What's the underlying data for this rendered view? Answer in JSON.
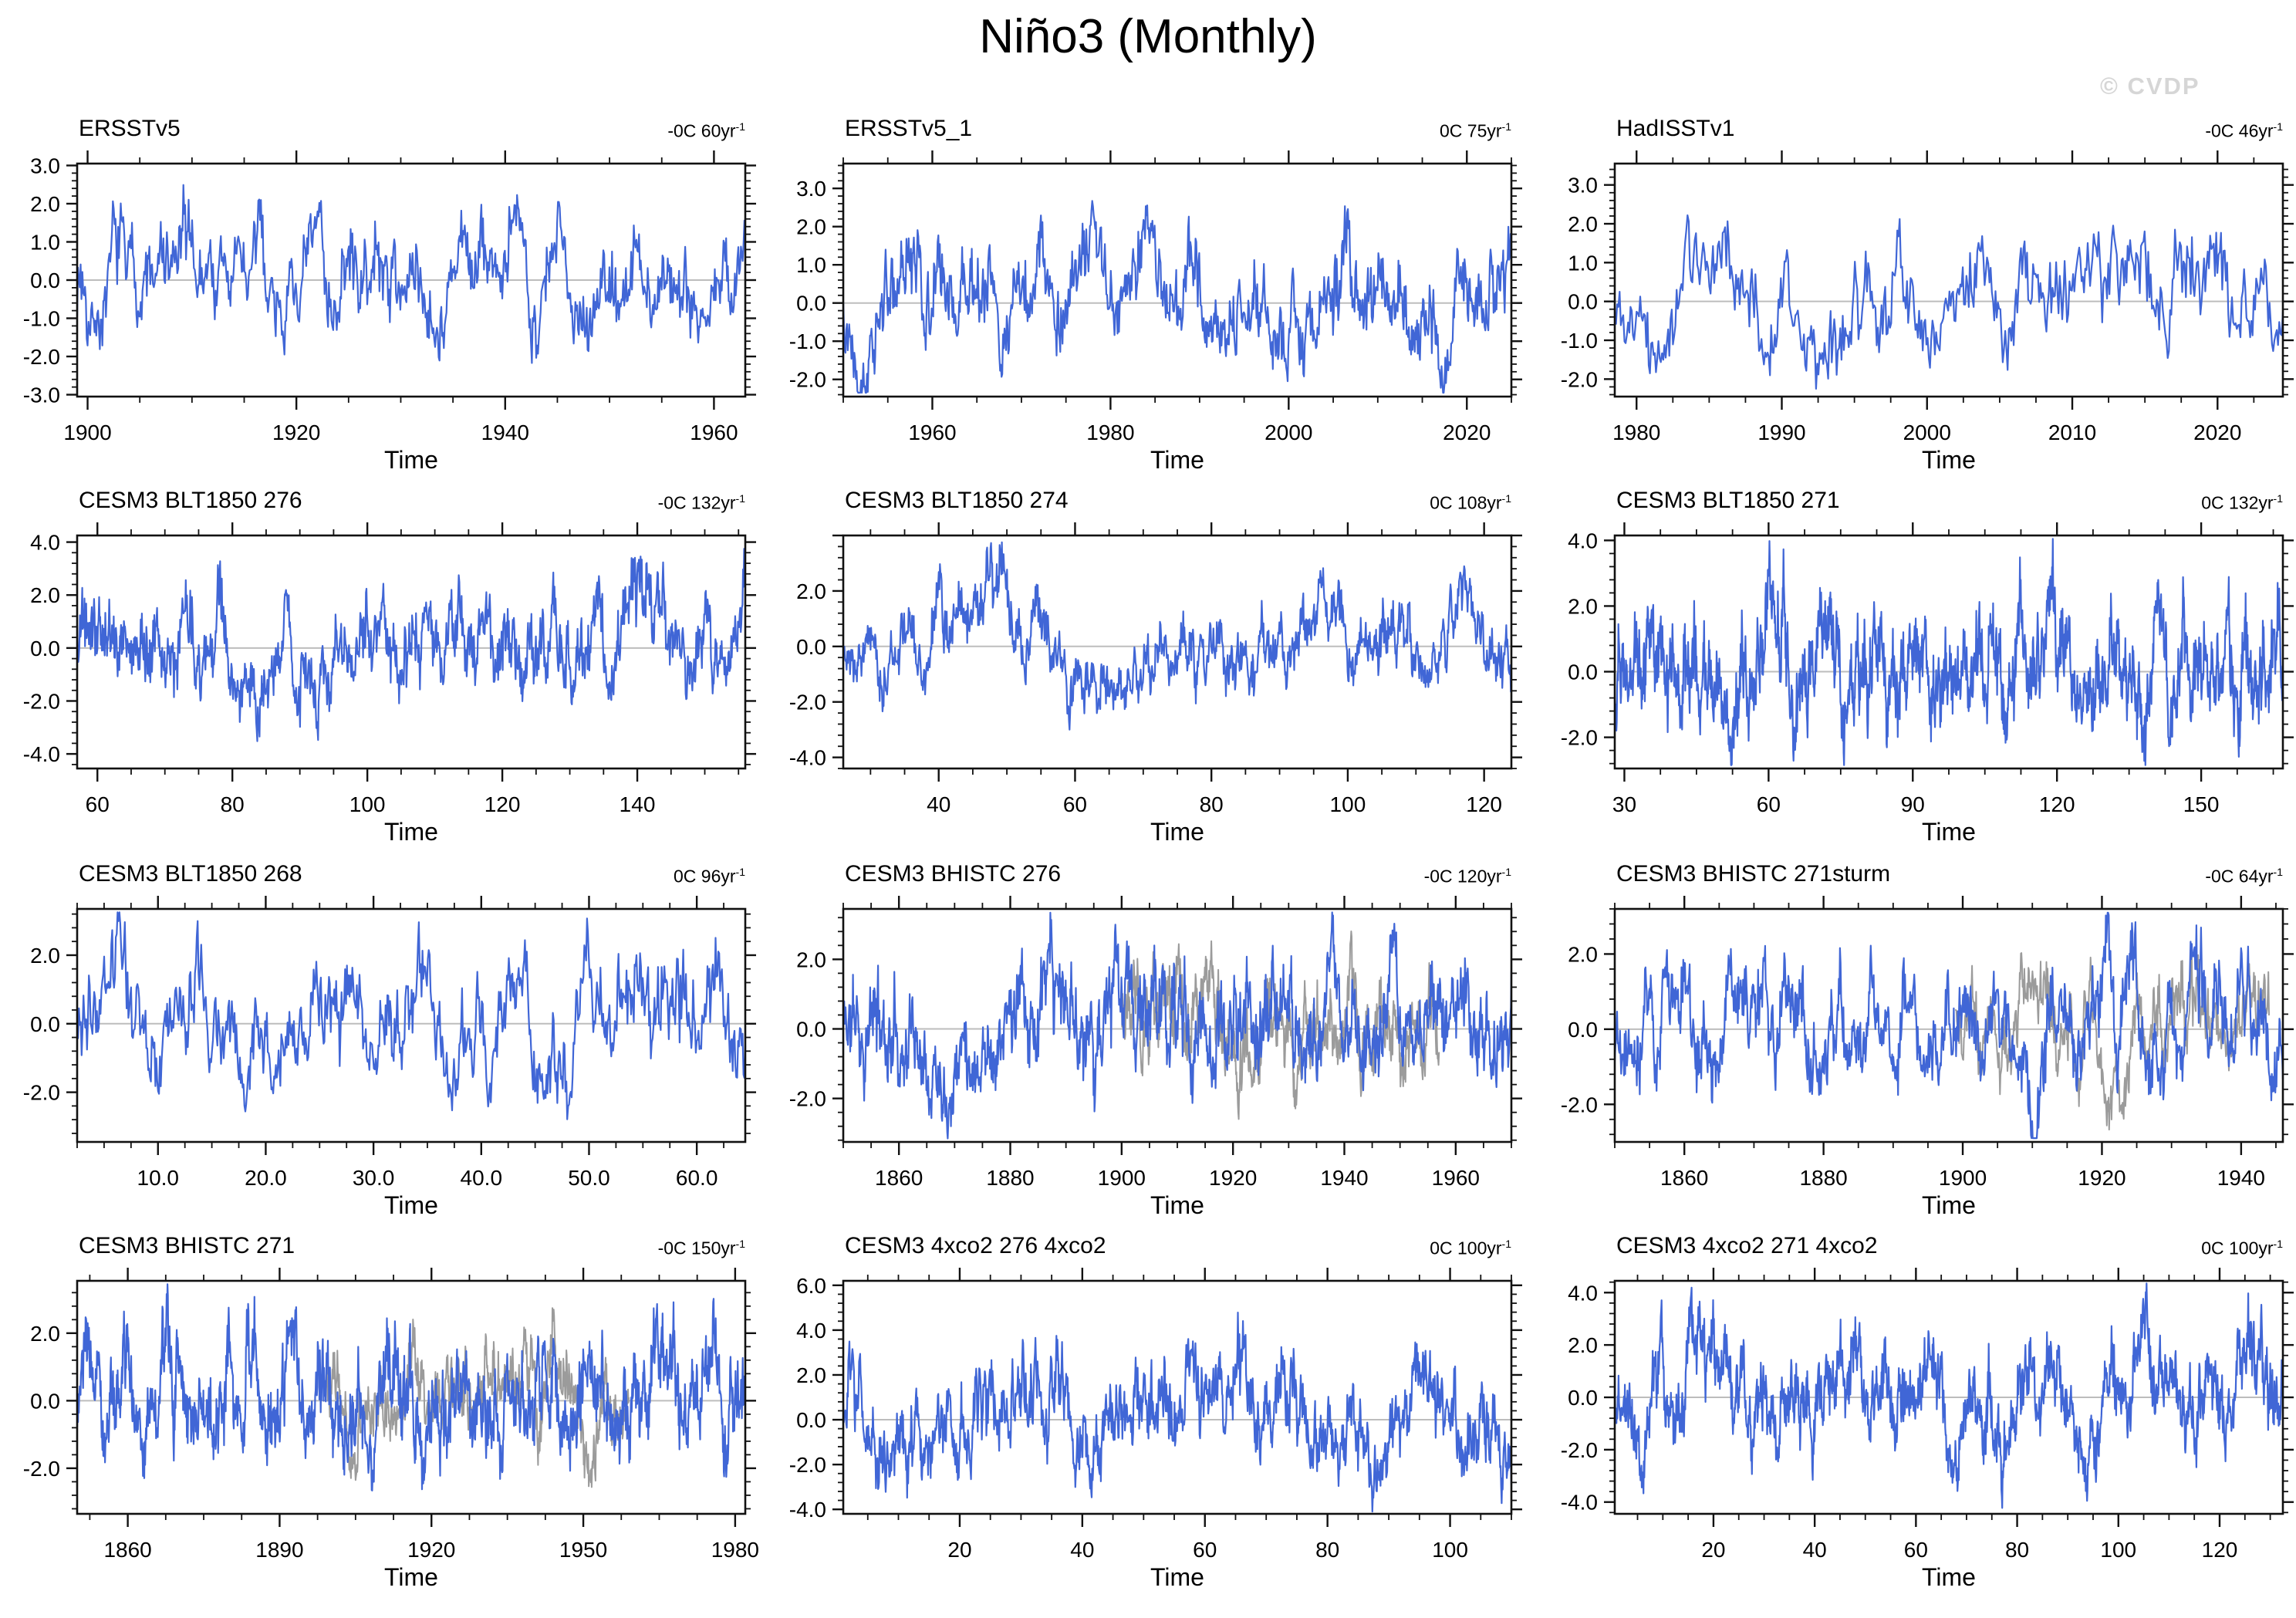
{
  "page_title": "Niño3 (Monthly)",
  "watermark": "© CVDP",
  "labels": {
    "time": "Time"
  },
  "colors": {
    "series_blue": "#4066D6",
    "series_gray": "#9B9B9B",
    "zero_line": "#BDBDBD",
    "axis": "#111111",
    "watermark_gray": "#D6D6D6",
    "background": "#FFFFFF"
  },
  "chart_data": [
    {
      "type": "line",
      "title": "ERSSTv5",
      "trend_prefix": "-0C 60yr",
      "trend_sup": "-1",
      "xlabel": "Time",
      "x_range": [
        1899,
        1963
      ],
      "y_range": [
        -3.05,
        3.05
      ],
      "x_tick_values": [
        1900,
        1920,
        1940,
        1960
      ],
      "x_tick_labels": [
        "1900",
        "1920",
        "1940",
        "1960"
      ],
      "y_tick_values": [
        3,
        2,
        1,
        0,
        -1,
        -2,
        -3
      ],
      "y_tick_labels": [
        "3.0",
        "2.0",
        "1.0",
        "0.0",
        "-1.0",
        "-2.0",
        "-3.0"
      ],
      "series": [
        {
          "name": "Niño3 index",
          "color_key": "series_blue",
          "seed": 7,
          "sigma": 0.85,
          "x_start": 1899,
          "x_end": 1963
        }
      ]
    },
    {
      "type": "line",
      "title": "ERSSTv5_1",
      "trend_prefix": "0C 75yr",
      "trend_sup": "-1",
      "xlabel": "Time",
      "x_range": [
        1950,
        2025
      ],
      "y_range": [
        -2.45,
        3.65
      ],
      "x_tick_values": [
        1960,
        1980,
        2000,
        2020
      ],
      "x_tick_labels": [
        "1960",
        "1980",
        "2000",
        "2020"
      ],
      "y_tick_values": [
        3,
        2,
        1,
        0,
        -1,
        -2
      ],
      "y_tick_labels": [
        "3.0",
        "2.0",
        "1.0",
        "0.0",
        "-1.0",
        "-2.0"
      ],
      "series": [
        {
          "name": "Niño3 index",
          "color_key": "series_blue",
          "seed": 13,
          "sigma": 0.95,
          "x_start": 1950,
          "x_end": 2025
        }
      ]
    },
    {
      "type": "line",
      "title": "HadISSTv1",
      "trend_prefix": "-0C 46yr",
      "trend_sup": "-1",
      "xlabel": "Time",
      "x_range": [
        1978.5,
        2024.5
      ],
      "y_range": [
        -2.45,
        3.55
      ],
      "x_tick_values": [
        1980,
        1990,
        2000,
        2010,
        2020
      ],
      "x_tick_labels": [
        "1980",
        "1990",
        "2000",
        "2010",
        "2020"
      ],
      "y_tick_values": [
        3,
        2,
        1,
        0,
        -1,
        -2
      ],
      "y_tick_labels": [
        "3.0",
        "2.0",
        "1.0",
        "0.0",
        "-1.0",
        "-2.0"
      ],
      "series": [
        {
          "name": "Niño3 index",
          "color_key": "series_blue",
          "seed": 21,
          "sigma": 0.9,
          "x_start": 1978.5,
          "x_end": 2024.5
        }
      ]
    },
    {
      "type": "line",
      "title": "CESM3 BLT1850 276",
      "trend_prefix": "-0C 132yr",
      "trend_sup": "-1",
      "xlabel": "Time",
      "x_range": [
        57,
        156
      ],
      "y_range": [
        -4.55,
        4.25
      ],
      "x_tick_values": [
        60,
        80,
        100,
        120,
        140
      ],
      "x_tick_labels": [
        "60",
        "80",
        "100",
        "120",
        "140"
      ],
      "y_tick_values": [
        4,
        2,
        0,
        -2,
        -4
      ],
      "y_tick_labels": [
        "4.0",
        "2.0",
        "0.0",
        "-2.0",
        "-4.0"
      ],
      "series": [
        {
          "name": "Niño3 index",
          "color_key": "series_blue",
          "seed": 5,
          "sigma": 1.15,
          "x_start": 57,
          "x_end": 156
        }
      ]
    },
    {
      "type": "line",
      "title": "CESM3 BLT1850 274",
      "trend_prefix": "0C 108yr",
      "trend_sup": "-1",
      "xlabel": "Time",
      "x_range": [
        26,
        124
      ],
      "y_range": [
        -4.4,
        4.0
      ],
      "x_tick_values": [
        40,
        60,
        80,
        100,
        120
      ],
      "x_tick_labels": [
        "40",
        "60",
        "80",
        "100",
        "120"
      ],
      "y_tick_values": [
        2,
        0,
        -2,
        -4
      ],
      "y_tick_labels": [
        "2.0",
        "0.0",
        "-2.0",
        "-4.0"
      ],
      "series": [
        {
          "name": "Niño3 index",
          "color_key": "series_blue",
          "seed": 17,
          "sigma": 1.1,
          "x_start": 26,
          "x_end": 124
        }
      ]
    },
    {
      "type": "line",
      "title": "CESM3 BLT1850 271",
      "trend_prefix": "0C 132yr",
      "trend_sup": "-1",
      "xlabel": "Time",
      "x_range": [
        28,
        167
      ],
      "y_range": [
        -2.95,
        4.15
      ],
      "x_tick_values": [
        30,
        60,
        90,
        120,
        150
      ],
      "x_tick_labels": [
        "30",
        "60",
        "90",
        "120",
        "150"
      ],
      "y_tick_values": [
        4,
        2,
        0,
        -2
      ],
      "y_tick_labels": [
        "4.0",
        "2.0",
        "0.0",
        "-2.0"
      ],
      "series": [
        {
          "name": "Niño3 index",
          "color_key": "series_blue",
          "seed": 29,
          "sigma": 1.05,
          "x_start": 28,
          "x_end": 167
        }
      ]
    },
    {
      "type": "line",
      "title": "CESM3 BLT1850 268",
      "trend_prefix": "0C 96yr",
      "trend_sup": "-1",
      "xlabel": "Time",
      "x_range": [
        2.5,
        64.5
      ],
      "y_range": [
        -3.45,
        3.35
      ],
      "x_tick_values": [
        10,
        20,
        30,
        40,
        50,
        60
      ],
      "x_tick_labels": [
        "10.0",
        "20.0",
        "30.0",
        "40.0",
        "50.0",
        "60.0"
      ],
      "y_tick_values": [
        2,
        0,
        -2
      ],
      "y_tick_labels": [
        "2.0",
        "0.0",
        "-2.0"
      ],
      "series": [
        {
          "name": "Niño3 index",
          "color_key": "series_blue",
          "seed": 3,
          "sigma": 1.1,
          "x_start": 2.5,
          "x_end": 64.5
        }
      ]
    },
    {
      "type": "line",
      "title": "CESM3 BHISTC 276",
      "trend_prefix": "-0C 120yr",
      "trend_sup": "-1",
      "xlabel": "Time",
      "x_range": [
        1850,
        1970
      ],
      "y_range": [
        -3.25,
        3.45
      ],
      "x_tick_values": [
        1860,
        1880,
        1900,
        1920,
        1940,
        1960
      ],
      "x_tick_labels": [
        "1860",
        "1880",
        "1900",
        "1920",
        "1940",
        "1960"
      ],
      "y_tick_values": [
        2,
        0,
        -2
      ],
      "y_tick_labels": [
        "2.0",
        "0.0",
        "-2.0"
      ],
      "series": [
        {
          "name": "ensemble member (gray)",
          "color_key": "series_gray",
          "seed": 111,
          "sigma": 0.9,
          "x_start": 1900,
          "x_end": 1957
        },
        {
          "name": "Niño3 index",
          "color_key": "series_blue",
          "seed": 11,
          "sigma": 1.0,
          "x_start": 1850,
          "x_end": 1970
        }
      ]
    },
    {
      "type": "line",
      "title": "CESM3 BHISTC 271sturm",
      "trend_prefix": "-0C 64yr",
      "trend_sup": "-1",
      "xlabel": "Time",
      "x_range": [
        1850,
        1946
      ],
      "y_range": [
        -3.0,
        3.2
      ],
      "x_tick_values": [
        1860,
        1880,
        1900,
        1920,
        1940
      ],
      "x_tick_labels": [
        "1860",
        "1880",
        "1900",
        "1920",
        "1940"
      ],
      "y_tick_values": [
        2,
        0,
        -2
      ],
      "y_tick_labels": [
        "2.0",
        "0.0",
        "-2.0"
      ],
      "series": [
        {
          "name": "ensemble member (gray)",
          "color_key": "series_gray",
          "seed": 119,
          "sigma": 0.9,
          "x_start": 1899,
          "x_end": 1944
        },
        {
          "name": "Niño3 index",
          "color_key": "series_blue",
          "seed": 19,
          "sigma": 1.0,
          "x_start": 1850,
          "x_end": 1946
        }
      ]
    },
    {
      "type": "line",
      "title": "CESM3 BHISTC 271",
      "trend_prefix": "-0C 150yr",
      "trend_sup": "-1",
      "xlabel": "Time",
      "x_range": [
        1850,
        1982
      ],
      "y_range": [
        -3.35,
        3.55
      ],
      "x_tick_values": [
        1860,
        1890,
        1920,
        1950,
        1980
      ],
      "x_tick_labels": [
        "1860",
        "1890",
        "1920",
        "1950",
        "1980"
      ],
      "y_tick_values": [
        2,
        0,
        -2
      ],
      "y_tick_labels": [
        "2.0",
        "0.0",
        "-2.0"
      ],
      "series": [
        {
          "name": "ensemble member (gray)",
          "color_key": "series_gray",
          "seed": 123,
          "sigma": 0.9,
          "x_start": 1899,
          "x_end": 1959
        },
        {
          "name": "Niño3 index",
          "color_key": "series_blue",
          "seed": 23,
          "sigma": 1.0,
          "x_start": 1850,
          "x_end": 1982
        }
      ]
    },
    {
      "type": "line",
      "title": "CESM3 4xco2 276 4xco2",
      "trend_prefix": "0C 100yr",
      "trend_sup": "-1",
      "xlabel": "Time",
      "x_range": [
        1,
        110
      ],
      "y_range": [
        -4.2,
        6.2
      ],
      "x_tick_values": [
        20,
        40,
        60,
        80,
        100
      ],
      "x_tick_labels": [
        "20",
        "40",
        "60",
        "80",
        "100"
      ],
      "y_tick_values": [
        6,
        4,
        2,
        0,
        -2,
        -4
      ],
      "y_tick_labels": [
        "6.0",
        "4.0",
        "2.0",
        "0.0",
        "-2.0",
        "-4.0"
      ],
      "series": [
        {
          "name": "Niño3 index",
          "color_key": "series_blue",
          "seed": 31,
          "sigma": 1.45,
          "x_start": 1,
          "x_end": 110
        }
      ]
    },
    {
      "type": "line",
      "title": "CESM3 4xco2 271 4xco2",
      "trend_prefix": "0C 100yr",
      "trend_sup": "-1",
      "xlabel": "Time",
      "x_range": [
        0.5,
        132.5
      ],
      "y_range": [
        -4.45,
        4.45
      ],
      "x_tick_values": [
        20,
        40,
        60,
        80,
        100,
        120
      ],
      "x_tick_labels": [
        "20",
        "40",
        "60",
        "80",
        "100",
        "120"
      ],
      "y_tick_values": [
        4,
        2,
        0,
        -2,
        -4
      ],
      "y_tick_labels": [
        "4.0",
        "2.0",
        "0.0",
        "-2.0",
        "-4.0"
      ],
      "series": [
        {
          "name": "Niño3 index",
          "color_key": "series_blue",
          "seed": 37,
          "sigma": 1.35,
          "x_start": 0.5,
          "x_end": 132.5
        }
      ]
    }
  ]
}
